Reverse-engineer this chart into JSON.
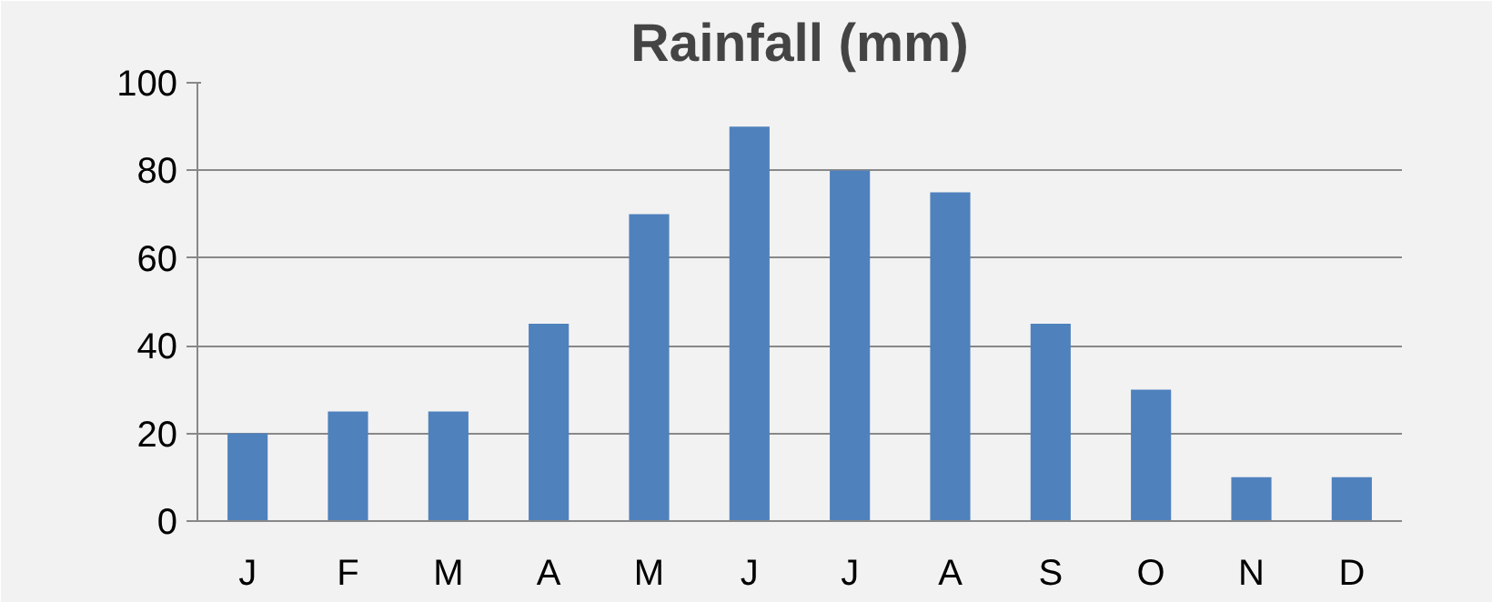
{
  "chart_data": {
    "type": "bar",
    "title": "Rainfall (mm)",
    "categories": [
      "J",
      "F",
      "M",
      "A",
      "M",
      "J",
      "J",
      "A",
      "S",
      "O",
      "N",
      "D"
    ],
    "values": [
      20,
      25,
      25,
      45,
      70,
      90,
      80,
      75,
      45,
      30,
      10,
      10
    ],
    "color": "#4f81bd",
    "ylim": [
      0,
      100
    ],
    "yticks": [
      0,
      20,
      40,
      60,
      80,
      100
    ],
    "grid": "y"
  }
}
